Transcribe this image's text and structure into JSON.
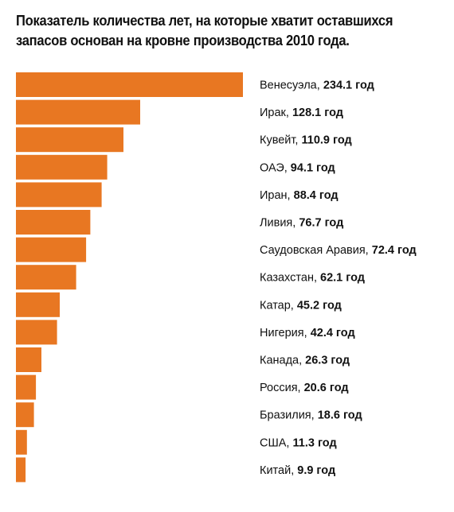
{
  "title": {
    "line1": "Показатель количества лет, на которые хватит оставшихся",
    "line2": "запасов основан на кровне производства  2010 года."
  },
  "chart_data": {
    "type": "bar",
    "orientation": "horizontal",
    "bar_color": "#E87722",
    "unit": "год",
    "categories": [
      "Венесуэла",
      "Ирак",
      "Кувейт",
      "ОАЭ",
      "Иран",
      "Ливия",
      "Саудовская Аравия",
      "Казахстан",
      "Катар",
      "Нигерия",
      "Канада",
      "Россия",
      "Бразилия",
      "США",
      "Китай"
    ],
    "values": [
      234.1,
      128.1,
      110.9,
      94.1,
      88.4,
      76.7,
      72.4,
      62.1,
      45.2,
      42.4,
      26.3,
      20.6,
      18.6,
      11.3,
      9.9
    ],
    "labels": [
      "Венесуэла, ",
      "Ирак, ",
      "Кувейт, ",
      "ОАЭ, ",
      "Иран, ",
      "Ливия, ",
      "Саудовская Аравия, ",
      "Казахстан, ",
      "Катар, ",
      "Нигерия, ",
      "Канада, ",
      "Россия, ",
      "Бразилия, ",
      "США, ",
      "Китай, "
    ],
    "value_labels": [
      "234.1 год",
      "128.1 год",
      "110.9 год",
      "94.1 год",
      "88.4 год",
      "76.7 год",
      "72.4 год",
      "62.1 год",
      "45.2 год",
      "42.4 год",
      "26.3 год",
      "20.6 год",
      "18.6 год",
      "11.3 год",
      "9.9 год"
    ],
    "legend": "none",
    "grid": false
  }
}
